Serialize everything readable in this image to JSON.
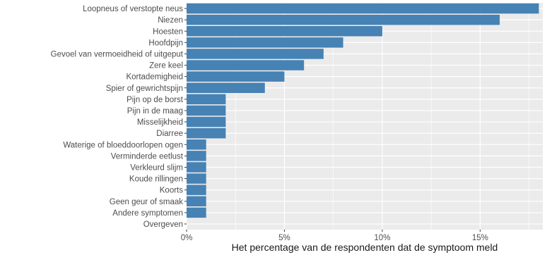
{
  "chart_data": {
    "type": "bar",
    "orientation": "horizontal",
    "title": "",
    "xlabel": "Het percentage van de respondenten dat de symptoom meld",
    "ylabel": "",
    "xlim": [
      0,
      18.2
    ],
    "x_ticks": [
      0,
      5,
      10,
      15
    ],
    "x_tick_labels": [
      "0%",
      "5%",
      "10%",
      "15%"
    ],
    "grid": true,
    "legend": "none",
    "colors": {
      "bar": "#4682b4",
      "panel": "#ebebeb",
      "grid_major": "#ffffff"
    },
    "categories": [
      "Loopneus of verstopte neus",
      "Niezen",
      "Hoesten",
      "Hoofdpijn",
      "Gevoel van vermoeidheid of uitgeput",
      "Zere keel",
      "Kortademigheid",
      "Spier of gewrichtspijn",
      "Pijn op de borst",
      "Pijn in de maag",
      "Misselijkheid",
      "Diarree",
      "Waterige of bloeddoorlopen ogen",
      "Verminderde eetlust",
      "Verkleurd slijm",
      "Koude rillingen",
      "Koorts",
      "Geen geur of smaak",
      "Andere symptomen",
      "Overgeven"
    ],
    "values": [
      18,
      16,
      10,
      8,
      7,
      6,
      5,
      4,
      2,
      2,
      2,
      2,
      1,
      1,
      1,
      1,
      1,
      1,
      1,
      0
    ]
  }
}
